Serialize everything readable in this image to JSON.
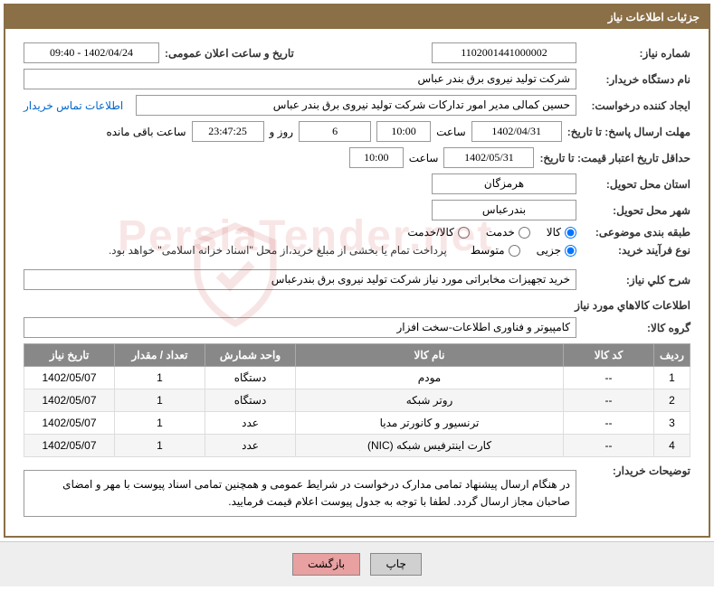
{
  "header": {
    "title": "جزئیات اطلاعات نیاز"
  },
  "fields": {
    "need_number_label": "شماره نیاز:",
    "need_number": "1102001441000002",
    "announce_label": "تاریخ و ساعت اعلان عمومی:",
    "announce_value": "1402/04/24 - 09:40",
    "buyer_org_label": "نام دستگاه خریدار:",
    "buyer_org": "شرکت تولید نیروی برق بندر عباس",
    "requester_label": "ایجاد کننده درخواست:",
    "requester": "حسین کمالی مدیر امور تدارکات شرکت تولید نیروی برق بندر عباس",
    "contact_link": "اطلاعات تماس خریدار",
    "deadline_label": "مهلت ارسال پاسخ: تا تاریخ:",
    "deadline_date": "1402/04/31",
    "time_label": "ساعت",
    "deadline_time": "10:00",
    "remain_days": "6",
    "remain_day_label": "روز و",
    "remain_time": "23:47:25",
    "remain_suffix": "ساعت باقی مانده",
    "validity_label": "حداقل تاریخ اعتبار قیمت: تا تاریخ:",
    "validity_date": "1402/05/31",
    "validity_time": "10:00",
    "province_label": "استان محل تحویل:",
    "province": "هرمزگان",
    "city_label": "شهر محل تحویل:",
    "city": "بندرعباس",
    "category_label": "طبقه بندی موضوعی:",
    "cat_goods": "کالا",
    "cat_service": "خدمت",
    "cat_both": "کالا/خدمت",
    "purchase_type_label": "نوع فرآیند خرید:",
    "pt_partial": "جزیی",
    "pt_medium": "متوسط",
    "purchase_note": "پرداخت تمام یا بخشی از مبلغ خرید،از محل \"اسناد خزانه اسلامی\" خواهد بود.",
    "desc_label": "شرح کلي نیاز:",
    "desc_value": "خرید تجهیزات مخابراتی مورد نیاز شرکت تولید نیروی برق بندرعباس",
    "goods_info_title": "اطلاعات کالاهاي مورد نیاز",
    "goods_group_label": "گروه کالا:",
    "goods_group": "کامپیوتر و فناوری اطلاعات-سخت افزار",
    "buyer_notes_label": "توضیحات خریدار:",
    "buyer_notes": "در هنگام ارسال پیشنهاد تمامی مدارک درخواست در شرایط عمومی و همچنین تمامی اسناد پیوست با مهر و امضای صاحبان مجاز ارسال گردد. لطفا با توجه به جدول پیوست اعلام قیمت فرمایید."
  },
  "table": {
    "headers": {
      "row": "ردیف",
      "code": "کد کالا",
      "name": "نام کالا",
      "unit": "واحد شمارش",
      "qty": "تعداد / مقدار",
      "date": "تاریخ نیاز"
    },
    "rows": [
      {
        "n": "1",
        "code": "--",
        "name": "مودم",
        "unit": "دستگاه",
        "qty": "1",
        "date": "1402/05/07"
      },
      {
        "n": "2",
        "code": "--",
        "name": "روتر شبکه",
        "unit": "دستگاه",
        "qty": "1",
        "date": "1402/05/07"
      },
      {
        "n": "3",
        "code": "--",
        "name": "ترنسیور و کانورتر مدیا",
        "unit": "عدد",
        "qty": "1",
        "date": "1402/05/07"
      },
      {
        "n": "4",
        "code": "--",
        "name": "کارت اینترفیس شبکه (NIC)",
        "unit": "عدد",
        "qty": "1",
        "date": "1402/05/07"
      }
    ]
  },
  "buttons": {
    "print": "چاپ",
    "back": "بازگشت"
  },
  "watermark": "PersiaTender.net"
}
